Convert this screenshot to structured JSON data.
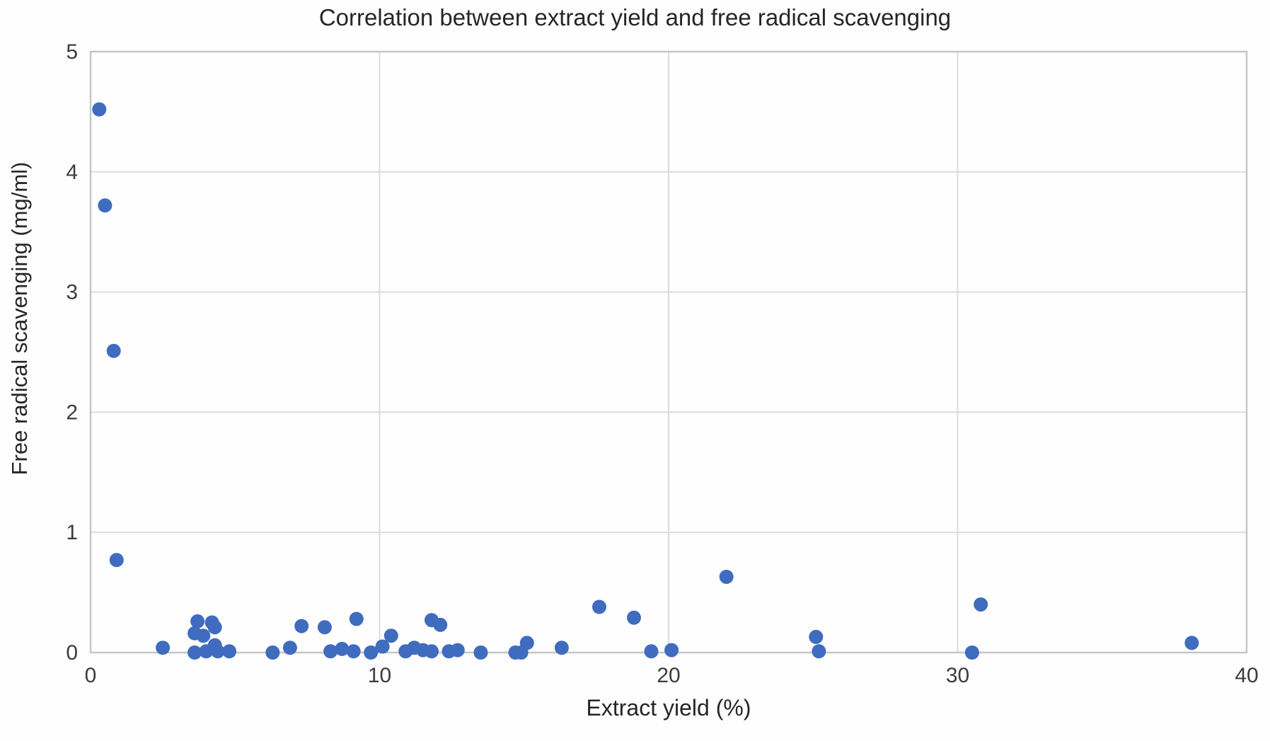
{
  "chart_data": {
    "type": "scatter",
    "title": "Correlation between extract yield and free radical scavenging",
    "xlabel": "Extract yield (%)",
    "ylabel": "Free radical scavenging (mg/ml)",
    "xlim": [
      0,
      40
    ],
    "ylim": [
      0,
      5
    ],
    "xticks": [
      0,
      10,
      20,
      30,
      40
    ],
    "yticks": [
      0,
      1,
      2,
      3,
      4,
      5
    ],
    "grid": true,
    "legend": false,
    "marker_color": "#3f6cbf",
    "gridline_color": "#dcdcdc",
    "border_color": "#c6c6c6",
    "points": [
      [
        0.3,
        4.52
      ],
      [
        0.5,
        3.72
      ],
      [
        0.8,
        2.51
      ],
      [
        0.9,
        0.77
      ],
      [
        2.5,
        0.04
      ],
      [
        3.6,
        0.0
      ],
      [
        3.6,
        0.16
      ],
      [
        3.7,
        0.26
      ],
      [
        3.9,
        0.14
      ],
      [
        4.0,
        0.01
      ],
      [
        4.2,
        0.25
      ],
      [
        4.3,
        0.21
      ],
      [
        4.3,
        0.06
      ],
      [
        4.4,
        0.01
      ],
      [
        4.8,
        0.01
      ],
      [
        6.3,
        0.0
      ],
      [
        6.9,
        0.04
      ],
      [
        7.3,
        0.22
      ],
      [
        8.1,
        0.21
      ],
      [
        8.3,
        0.01
      ],
      [
        8.7,
        0.03
      ],
      [
        9.1,
        0.01
      ],
      [
        9.2,
        0.28
      ],
      [
        9.7,
        0.0
      ],
      [
        10.1,
        0.05
      ],
      [
        10.4,
        0.14
      ],
      [
        10.9,
        0.01
      ],
      [
        11.2,
        0.04
      ],
      [
        11.5,
        0.02
      ],
      [
        11.8,
        0.01
      ],
      [
        11.8,
        0.27
      ],
      [
        12.1,
        0.23
      ],
      [
        12.4,
        0.01
      ],
      [
        12.7,
        0.02
      ],
      [
        13.5,
        0.0
      ],
      [
        14.7,
        0.0
      ],
      [
        14.9,
        0.0
      ],
      [
        15.1,
        0.08
      ],
      [
        16.3,
        0.04
      ],
      [
        17.6,
        0.38
      ],
      [
        18.8,
        0.29
      ],
      [
        19.4,
        0.01
      ],
      [
        20.1,
        0.02
      ],
      [
        22.0,
        0.63
      ],
      [
        25.1,
        0.13
      ],
      [
        25.2,
        0.01
      ],
      [
        30.5,
        0.0
      ],
      [
        30.8,
        0.4
      ],
      [
        38.1,
        0.08
      ]
    ]
  }
}
